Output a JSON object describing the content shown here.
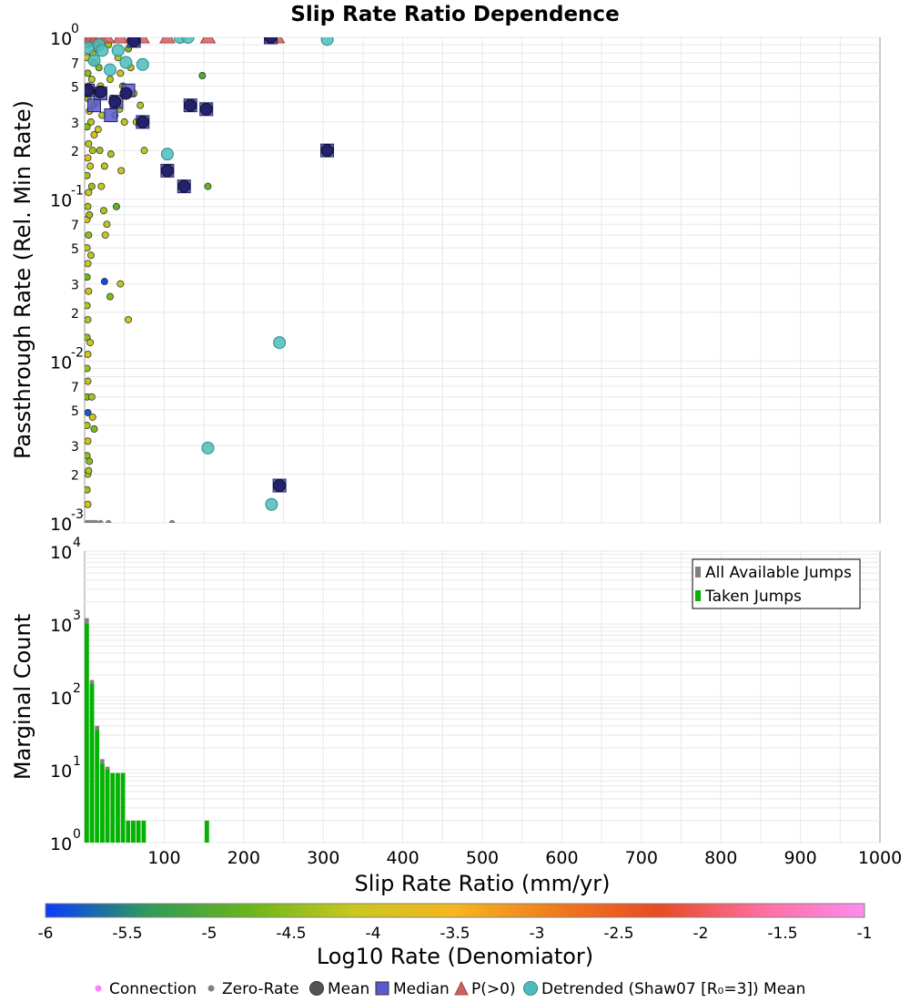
{
  "title": "Slip Rate Ratio Dependence",
  "top_ylabel": "Passthrough Rate (Rel. Min Rate)",
  "bottom_ylabel": "Marginal Count",
  "xlabel": "Slip Rate Ratio (mm/yr)",
  "colorbar": {
    "label": "Log10 Rate (Denomiator)",
    "min": -6,
    "max": -1,
    "ticks": [
      "-6",
      "-5.5",
      "-5",
      "-4.5",
      "-4",
      "-3.5",
      "-3",
      "-2.5",
      "-2",
      "-1.5",
      "-1"
    ],
    "stops": [
      "#0a3cff",
      "#2f9a5a",
      "#6ab61a",
      "#c8c81e",
      "#f6b61e",
      "#f07a1e",
      "#e84a24",
      "#ff6ea0",
      "#ff8cf0"
    ]
  },
  "legend_top": {
    "all_label": "All Available Jumps",
    "taken_label": "Taken Jumps"
  },
  "legend_bottom": {
    "connection": "Connection",
    "zero_rate": "Zero-Rate",
    "mean": "Mean",
    "median": "Median",
    "p_gt_0": "P(>0)",
    "detrended": "Detrended (Shaw07 [R₀=3]) Mean"
  },
  "colors": {
    "mean": "#1a1a66",
    "median": "#5a5ad0",
    "p_gt_0": "#d06060",
    "detrended": "#4cbcbc",
    "zero_rate": "#808080",
    "connection": "#ff80ff",
    "all_bar": "#808080",
    "taken_bar": "#00b400",
    "grid": "#e8e8e8"
  },
  "chart_data": [
    {
      "type": "scatter",
      "title": "Slip Rate Ratio Dependence",
      "xlabel": "Slip Rate Ratio (mm/yr)",
      "ylabel": "Passthrough Rate (Rel. Min Rate)",
      "xlim": [
        0,
        1000
      ],
      "ylim": [
        0.001,
        1
      ],
      "yscale": "log",
      "y_tick_labels": [
        "10^-3",
        "2",
        "3",
        "5",
        "7",
        "10^-2",
        "2",
        "3",
        "5",
        "7",
        "10^-1",
        "2",
        "3",
        "5",
        "7",
        "10^0"
      ],
      "series": [
        {
          "name": "Connection",
          "points": [
            [
              3,
              0.9,
              -4.2
            ],
            [
              3,
              0.75,
              -4.0
            ],
            [
              4,
              0.6,
              -4.5
            ],
            [
              5,
              0.5,
              -4.1
            ],
            [
              4,
              0.42,
              -4.3
            ],
            [
              6,
              0.35,
              -4.0
            ],
            [
              3,
              0.28,
              -4.6
            ],
            [
              5,
              0.22,
              -4.2
            ],
            [
              4,
              0.18,
              -3.9
            ],
            [
              3,
              0.14,
              -4.4
            ],
            [
              5,
              0.11,
              -4.1
            ],
            [
              4,
              0.09,
              -4.3
            ],
            [
              3,
              0.075,
              -4.0
            ],
            [
              5,
              0.06,
              -4.5
            ],
            [
              3,
              0.05,
              -4.2
            ],
            [
              4,
              0.04,
              -4.1
            ],
            [
              3,
              0.033,
              -4.7
            ],
            [
              5,
              0.027,
              -4.0
            ],
            [
              3,
              0.022,
              -4.3
            ],
            [
              4,
              0.018,
              -4.2
            ],
            [
              3,
              0.014,
              -4.5
            ],
            [
              4,
              0.011,
              -4.1
            ],
            [
              3,
              0.009,
              -4.4
            ],
            [
              4,
              0.0075,
              -4.2
            ],
            [
              3,
              0.006,
              -4.6
            ],
            [
              4,
              0.0048,
              -5.8
            ],
            [
              3,
              0.004,
              -4.3
            ],
            [
              4,
              0.0032,
              -4.1
            ],
            [
              3,
              0.0026,
              -4.5
            ],
            [
              4,
              0.002,
              -4.2
            ],
            [
              3,
              0.0016,
              -4.4
            ],
            [
              4,
              0.0013,
              -4.1
            ],
            [
              8,
              0.95,
              -4.3
            ],
            [
              10,
              0.8,
              -4.0
            ],
            [
              12,
              0.7,
              -4.4
            ],
            [
              9,
              0.55,
              -4.2
            ],
            [
              14,
              0.45,
              -4.1
            ],
            [
              11,
              0.38,
              -4.5
            ],
            [
              8,
              0.3,
              -4.2
            ],
            [
              12,
              0.25,
              -4.0
            ],
            [
              10,
              0.2,
              -4.3
            ],
            [
              7,
              0.16,
              -4.1
            ],
            [
              9,
              0.12,
              -4.4
            ],
            [
              15,
              0.85,
              -4.2
            ],
            [
              18,
              0.65,
              -4.6
            ],
            [
              20,
              0.5,
              -4.1
            ],
            [
              16,
              0.4,
              -4.3
            ],
            [
              22,
              0.33,
              -4.2
            ],
            [
              17,
              0.27,
              -4.0
            ],
            [
              19,
              0.2,
              -4.4
            ],
            [
              25,
              0.16,
              -4.2
            ],
            [
              21,
              0.12,
              -4.1
            ],
            [
              24,
              0.085,
              -4.3
            ],
            [
              28,
              0.07,
              -4.2
            ],
            [
              26,
              0.06,
              -4.0
            ],
            [
              30,
              0.9,
              -4.4
            ],
            [
              32,
              0.55,
              -4.2
            ],
            [
              35,
              0.42,
              -4.1
            ],
            [
              38,
              0.33,
              -4.4
            ],
            [
              33,
              0.19,
              -4.3
            ],
            [
              40,
              0.09,
              -4.9
            ],
            [
              42,
              0.75,
              -4.2
            ],
            [
              45,
              0.6,
              -4.1
            ],
            [
              48,
              0.5,
              -4.5
            ],
            [
              44,
              0.36,
              -4.3
            ],
            [
              50,
              0.3,
              -4.2
            ],
            [
              46,
              0.15,
              -4.1
            ],
            [
              55,
              0.85,
              -4.6
            ],
            [
              58,
              0.65,
              -4.2
            ],
            [
              62,
              0.45,
              -4.1
            ],
            [
              70,
              0.38,
              -4.3
            ],
            [
              75,
              0.2,
              -4.2
            ],
            [
              65,
              0.3,
              -4.0
            ],
            [
              8,
              0.045,
              -4.2
            ],
            [
              6,
              0.08,
              -4.4
            ],
            [
              7,
              0.013,
              -4.1
            ],
            [
              9,
              0.006,
              -4.3
            ],
            [
              10,
              0.0045,
              -4.0
            ],
            [
              6,
              0.0024,
              -4.5
            ],
            [
              12,
              0.0038,
              -4.6
            ],
            [
              5,
              0.0021,
              -4.3
            ],
            [
              25,
              0.031,
              -5.9
            ],
            [
              32,
              0.025,
              -4.6
            ],
            [
              45,
              0.03,
              -4.2
            ],
            [
              55,
              0.018,
              -4.0
            ],
            [
              148,
              0.58,
              -5.0
            ],
            [
              155,
              0.12,
              -4.8
            ]
          ]
        },
        {
          "name": "Zero-Rate",
          "points": [
            [
              3,
              0.001
            ],
            [
              6,
              0.001
            ],
            [
              10,
              0.001
            ],
            [
              14,
              0.001
            ],
            [
              20,
              0.001
            ],
            [
              30,
              0.001
            ],
            [
              110,
              0.001
            ]
          ]
        },
        {
          "name": "Mean",
          "points": [
            [
              4,
              0.47
            ],
            [
              20,
              0.46
            ],
            [
              38,
              0.4
            ],
            [
              52,
              0.45
            ],
            [
              62,
              0.95
            ],
            [
              73,
              0.3
            ],
            [
              104,
              0.15
            ],
            [
              125,
              0.12
            ],
            [
              133,
              0.38
            ],
            [
              153,
              0.36
            ],
            [
              234,
              1.0
            ],
            [
              305,
              0.2
            ],
            [
              245,
              0.0017
            ]
          ]
        },
        {
          "name": "Median",
          "points": [
            [
              4,
              0.47
            ],
            [
              12,
              0.38
            ],
            [
              20,
              0.45
            ],
            [
              33,
              0.33
            ],
            [
              40,
              0.4
            ],
            [
              55,
              0.47
            ],
            [
              62,
              0.95
            ],
            [
              73,
              0.3
            ],
            [
              104,
              0.15
            ],
            [
              125,
              0.12
            ],
            [
              133,
              0.38
            ],
            [
              153,
              0.36
            ],
            [
              234,
              1.0
            ],
            [
              305,
              0.2
            ],
            [
              245,
              0.0017
            ]
          ]
        },
        {
          "name": "P(>0)",
          "points": [
            [
              2,
              1.0
            ],
            [
              8,
              1.0
            ],
            [
              12,
              0.95
            ],
            [
              20,
              1.0
            ],
            [
              28,
              1.0
            ],
            [
              45,
              1.0
            ],
            [
              60,
              1.0
            ],
            [
              72,
              1.0
            ],
            [
              104,
              1.0
            ],
            [
              155,
              1.0
            ],
            [
              235,
              1.0
            ],
            [
              242,
              1.0
            ]
          ]
        },
        {
          "name": "Detrended (Shaw07 [R₀=3]) Mean",
          "points": [
            [
              5,
              0.86
            ],
            [
              12,
              0.72
            ],
            [
              18,
              0.9
            ],
            [
              22,
              0.83
            ],
            [
              32,
              0.63
            ],
            [
              42,
              0.83
            ],
            [
              52,
              0.7
            ],
            [
              73,
              0.68
            ],
            [
              104,
              0.19
            ],
            [
              120,
              1.0
            ],
            [
              130,
              1.0
            ],
            [
              245,
              0.013
            ],
            [
              155,
              0.0029
            ],
            [
              235,
              0.0013
            ],
            [
              305,
              0.97
            ]
          ]
        }
      ]
    },
    {
      "type": "bar",
      "xlabel": "Slip Rate Ratio (mm/yr)",
      "ylabel": "Marginal Count",
      "xlim": [
        0,
        1000
      ],
      "ylim": [
        1,
        10000
      ],
      "yscale": "log",
      "bin_width": 6.5,
      "x_ticks": [
        100,
        200,
        300,
        400,
        500,
        600,
        700,
        800,
        900,
        1000
      ],
      "y_tick_labels": [
        "10^0",
        "10^1",
        "10^2",
        "10^3",
        "10^4"
      ],
      "series": [
        {
          "name": "All Available Jumps",
          "x": [
            0,
            6.5,
            13,
            19.5,
            26,
            32.5,
            39,
            45.5,
            52,
            58.5,
            65,
            71.5,
            151
          ],
          "values": [
            1200,
            170,
            40,
            14,
            11,
            9,
            9,
            9,
            2,
            2,
            2,
            2,
            2
          ]
        },
        {
          "name": "Taken Jumps",
          "x": [
            0,
            6.5,
            13,
            19.5,
            26,
            32.5,
            39,
            45.5,
            52,
            58.5,
            65,
            71.5,
            151
          ],
          "values": [
            1000,
            150,
            35,
            12,
            10,
            9,
            9,
            9,
            2,
            2,
            2,
            2,
            2
          ]
        }
      ],
      "legend": "top-right"
    }
  ]
}
